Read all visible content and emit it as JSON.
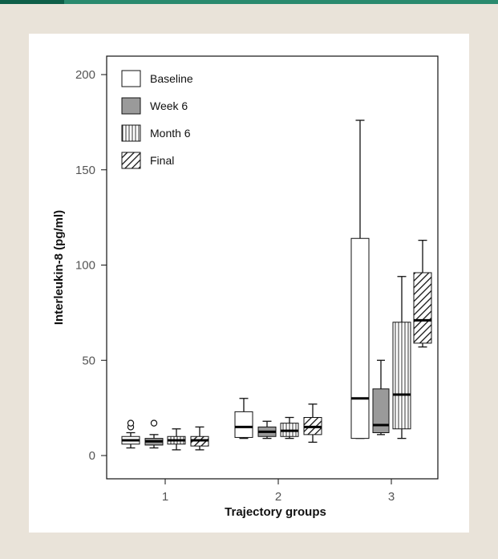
{
  "colors": {
    "page_background": "#e9e3d9",
    "header_accent": "#2a8a6e",
    "header_accent_dark": "#0e5f49",
    "panel_background": "#ffffff"
  },
  "chart_data": {
    "type": "boxplot",
    "title": "",
    "xlabel": "Trajectory groups",
    "ylabel": "Interleukin-8 (pg/ml)",
    "ylim": [
      -12,
      210
    ],
    "yticks": [
      0,
      50,
      100,
      150,
      200
    ],
    "grid": false,
    "legend_position": "top-left",
    "categories": [
      "1",
      "2",
      "3"
    ],
    "series": [
      {
        "name": "Baseline",
        "fill": "white",
        "boxes": [
          {
            "min": 4,
            "q1": 6,
            "median": 8,
            "q3": 10,
            "max": 12,
            "outliers": [
              15,
              17
            ]
          },
          {
            "min": 9,
            "q1": 9.5,
            "median": 15,
            "q3": 23,
            "max": 30,
            "outliers": []
          },
          {
            "min": 9,
            "q1": 9,
            "median": 30,
            "q3": 114,
            "max": 176,
            "outliers": []
          }
        ]
      },
      {
        "name": "Week 6",
        "fill": "gray",
        "boxes": [
          {
            "min": 4,
            "q1": 5.5,
            "median": 7.5,
            "q3": 9,
            "max": 11,
            "outliers": [
              17
            ]
          },
          {
            "min": 9,
            "q1": 10,
            "median": 12.5,
            "q3": 15,
            "max": 18,
            "outliers": []
          },
          {
            "min": 11,
            "q1": 12,
            "median": 16,
            "q3": 35,
            "max": 50,
            "outliers": []
          }
        ]
      },
      {
        "name": "Month 6",
        "fill": "vertical-stripes",
        "boxes": [
          {
            "min": 3,
            "q1": 6,
            "median": 8,
            "q3": 10,
            "max": 14,
            "outliers": []
          },
          {
            "min": 9,
            "q1": 10,
            "median": 13,
            "q3": 17,
            "max": 20,
            "outliers": []
          },
          {
            "min": 9,
            "q1": 14,
            "median": 32,
            "q3": 70,
            "max": 94,
            "outliers": []
          }
        ]
      },
      {
        "name": "Final",
        "fill": "diagonal-stripes",
        "boxes": [
          {
            "min": 3,
            "q1": 5,
            "median": 8,
            "q3": 10,
            "max": 15,
            "outliers": []
          },
          {
            "min": 7,
            "q1": 11,
            "median": 15,
            "q3": 20,
            "max": 27,
            "outliers": []
          },
          {
            "min": 57,
            "q1": 59,
            "median": 71,
            "q3": 96,
            "max": 113,
            "outliers": []
          }
        ]
      }
    ]
  }
}
